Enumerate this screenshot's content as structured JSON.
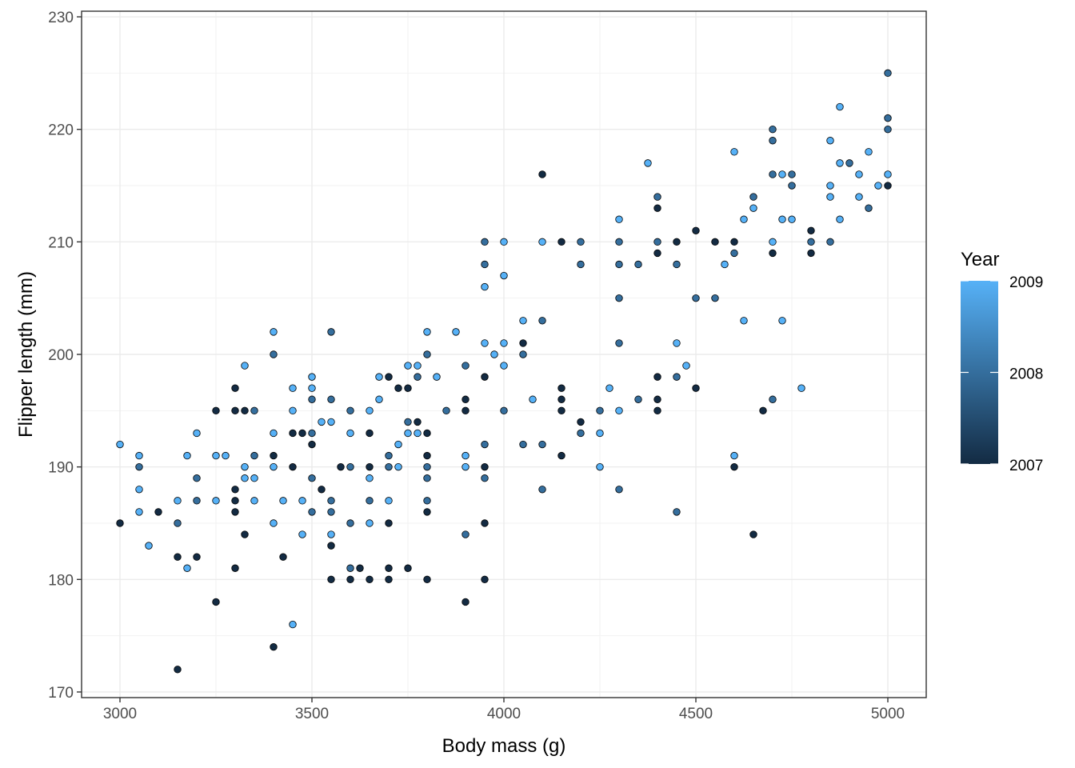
{
  "chart_data": {
    "type": "scatter",
    "title": "",
    "xlabel": "Body mass (g)",
    "ylabel": "Flipper length (mm)",
    "xlim": [
      2900,
      5100
    ],
    "ylim": [
      169.5,
      230.5
    ],
    "x_ticks": [
      3000,
      3500,
      4000,
      4500,
      5000
    ],
    "y_ticks": [
      170,
      180,
      190,
      200,
      210,
      220,
      230
    ],
    "x_tick_labels": [
      "3000",
      "3500",
      "4000",
      "4500",
      "5000"
    ],
    "y_tick_labels": [
      "170",
      "180",
      "190",
      "200",
      "210",
      "220",
      "230"
    ],
    "grid": true,
    "legend": {
      "title": "Year",
      "type": "colorbar",
      "placement": "right",
      "min": 2007,
      "max": 2009,
      "labels": [
        "2009",
        "2008",
        "2007"
      ],
      "low_color": "#132B43",
      "high_color": "#56B1F7"
    },
    "point_outline_color": "#000000",
    "points": [
      {
        "x": 3000,
        "y": 192,
        "year": 2009
      },
      {
        "x": 3000,
        "y": 185,
        "year": 2007
      },
      {
        "x": 3050,
        "y": 191,
        "year": 2009
      },
      {
        "x": 3050,
        "y": 190,
        "year": 2008
      },
      {
        "x": 3050,
        "y": 188,
        "year": 2009
      },
      {
        "x": 3050,
        "y": 186,
        "year": 2009
      },
      {
        "x": 3075,
        "y": 183,
        "year": 2009
      },
      {
        "x": 3100,
        "y": 186,
        "year": 2007
      },
      {
        "x": 3150,
        "y": 187,
        "year": 2009
      },
      {
        "x": 3150,
        "y": 185,
        "year": 2008
      },
      {
        "x": 3150,
        "y": 182,
        "year": 2007
      },
      {
        "x": 3150,
        "y": 172,
        "year": 2007
      },
      {
        "x": 3175,
        "y": 191,
        "year": 2009
      },
      {
        "x": 3175,
        "y": 181,
        "year": 2009
      },
      {
        "x": 3200,
        "y": 193,
        "year": 2009
      },
      {
        "x": 3200,
        "y": 189,
        "year": 2008
      },
      {
        "x": 3200,
        "y": 187,
        "year": 2008
      },
      {
        "x": 3200,
        "y": 182,
        "year": 2007
      },
      {
        "x": 3250,
        "y": 195,
        "year": 2007
      },
      {
        "x": 3250,
        "y": 191,
        "year": 2009
      },
      {
        "x": 3250,
        "y": 187,
        "year": 2009
      },
      {
        "x": 3250,
        "y": 178,
        "year": 2007
      },
      {
        "x": 3275,
        "y": 191,
        "year": 2009
      },
      {
        "x": 3300,
        "y": 197,
        "year": 2007
      },
      {
        "x": 3300,
        "y": 195,
        "year": 2007
      },
      {
        "x": 3300,
        "y": 188,
        "year": 2007
      },
      {
        "x": 3300,
        "y": 187,
        "year": 2007
      },
      {
        "x": 3300,
        "y": 186,
        "year": 2007
      },
      {
        "x": 3300,
        "y": 181,
        "year": 2007
      },
      {
        "x": 3325,
        "y": 199,
        "year": 2009
      },
      {
        "x": 3325,
        "y": 195,
        "year": 2007
      },
      {
        "x": 3325,
        "y": 190,
        "year": 2009
      },
      {
        "x": 3325,
        "y": 189,
        "year": 2009
      },
      {
        "x": 3325,
        "y": 184,
        "year": 2007
      },
      {
        "x": 3350,
        "y": 195,
        "year": 2008
      },
      {
        "x": 3350,
        "y": 191,
        "year": 2008
      },
      {
        "x": 3350,
        "y": 189,
        "year": 2009
      },
      {
        "x": 3350,
        "y": 187,
        "year": 2009
      },
      {
        "x": 3400,
        "y": 202,
        "year": 2009
      },
      {
        "x": 3400,
        "y": 200,
        "year": 2008
      },
      {
        "x": 3400,
        "y": 193,
        "year": 2009
      },
      {
        "x": 3400,
        "y": 191,
        "year": 2007
      },
      {
        "x": 3400,
        "y": 190,
        "year": 2009
      },
      {
        "x": 3400,
        "y": 185,
        "year": 2009
      },
      {
        "x": 3400,
        "y": 174,
        "year": 2007
      },
      {
        "x": 3425,
        "y": 187,
        "year": 2009
      },
      {
        "x": 3425,
        "y": 182,
        "year": 2007
      },
      {
        "x": 3450,
        "y": 197,
        "year": 2009
      },
      {
        "x": 3450,
        "y": 195,
        "year": 2009
      },
      {
        "x": 3450,
        "y": 193,
        "year": 2007
      },
      {
        "x": 3450,
        "y": 190,
        "year": 2007
      },
      {
        "x": 3450,
        "y": 176,
        "year": 2009
      },
      {
        "x": 3475,
        "y": 193,
        "year": 2007
      },
      {
        "x": 3475,
        "y": 187,
        "year": 2009
      },
      {
        "x": 3475,
        "y": 184,
        "year": 2009
      },
      {
        "x": 3500,
        "y": 198,
        "year": 2009
      },
      {
        "x": 3500,
        "y": 197,
        "year": 2009
      },
      {
        "x": 3500,
        "y": 196,
        "year": 2008
      },
      {
        "x": 3500,
        "y": 193,
        "year": 2008
      },
      {
        "x": 3500,
        "y": 192,
        "year": 2007
      },
      {
        "x": 3500,
        "y": 189,
        "year": 2008
      },
      {
        "x": 3500,
        "y": 186,
        "year": 2008
      },
      {
        "x": 3525,
        "y": 194,
        "year": 2009
      },
      {
        "x": 3525,
        "y": 188,
        "year": 2007
      },
      {
        "x": 3550,
        "y": 202,
        "year": 2008
      },
      {
        "x": 3550,
        "y": 196,
        "year": 2008
      },
      {
        "x": 3550,
        "y": 194,
        "year": 2009
      },
      {
        "x": 3550,
        "y": 187,
        "year": 2008
      },
      {
        "x": 3550,
        "y": 186,
        "year": 2008
      },
      {
        "x": 3550,
        "y": 184,
        "year": 2009
      },
      {
        "x": 3550,
        "y": 183,
        "year": 2007
      },
      {
        "x": 3550,
        "y": 180,
        "year": 2007
      },
      {
        "x": 3575,
        "y": 190,
        "year": 2007
      },
      {
        "x": 3600,
        "y": 195,
        "year": 2008
      },
      {
        "x": 3600,
        "y": 193,
        "year": 2009
      },
      {
        "x": 3600,
        "y": 190,
        "year": 2008
      },
      {
        "x": 3600,
        "y": 185,
        "year": 2008
      },
      {
        "x": 3600,
        "y": 181,
        "year": 2008
      },
      {
        "x": 3600,
        "y": 180,
        "year": 2007
      },
      {
        "x": 3625,
        "y": 181,
        "year": 2007
      },
      {
        "x": 3650,
        "y": 195,
        "year": 2009
      },
      {
        "x": 3650,
        "y": 193,
        "year": 2007
      },
      {
        "x": 3650,
        "y": 190,
        "year": 2007
      },
      {
        "x": 3650,
        "y": 189,
        "year": 2009
      },
      {
        "x": 3650,
        "y": 187,
        "year": 2008
      },
      {
        "x": 3650,
        "y": 185,
        "year": 2009
      },
      {
        "x": 3650,
        "y": 180,
        "year": 2007
      },
      {
        "x": 3675,
        "y": 198,
        "year": 2009
      },
      {
        "x": 3675,
        "y": 196,
        "year": 2009
      },
      {
        "x": 3700,
        "y": 198,
        "year": 2007
      },
      {
        "x": 3700,
        "y": 191,
        "year": 2008
      },
      {
        "x": 3700,
        "y": 190,
        "year": 2008
      },
      {
        "x": 3700,
        "y": 187,
        "year": 2009
      },
      {
        "x": 3700,
        "y": 185,
        "year": 2007
      },
      {
        "x": 3700,
        "y": 181,
        "year": 2007
      },
      {
        "x": 3700,
        "y": 180,
        "year": 2007
      },
      {
        "x": 3725,
        "y": 197,
        "year": 2007
      },
      {
        "x": 3725,
        "y": 192,
        "year": 2009
      },
      {
        "x": 3725,
        "y": 190,
        "year": 2009
      },
      {
        "x": 3750,
        "y": 199,
        "year": 2009
      },
      {
        "x": 3750,
        "y": 197,
        "year": 2007
      },
      {
        "x": 3750,
        "y": 194,
        "year": 2008
      },
      {
        "x": 3750,
        "y": 193,
        "year": 2009
      },
      {
        "x": 3750,
        "y": 181,
        "year": 2007
      },
      {
        "x": 3775,
        "y": 199,
        "year": 2009
      },
      {
        "x": 3775,
        "y": 198,
        "year": 2008
      },
      {
        "x": 3775,
        "y": 194,
        "year": 2007
      },
      {
        "x": 3775,
        "y": 193,
        "year": 2009
      },
      {
        "x": 3800,
        "y": 202,
        "year": 2009
      },
      {
        "x": 3800,
        "y": 200,
        "year": 2008
      },
      {
        "x": 3800,
        "y": 193,
        "year": 2007
      },
      {
        "x": 3800,
        "y": 191,
        "year": 2007
      },
      {
        "x": 3800,
        "y": 190,
        "year": 2008
      },
      {
        "x": 3800,
        "y": 189,
        "year": 2008
      },
      {
        "x": 3800,
        "y": 187,
        "year": 2008
      },
      {
        "x": 3800,
        "y": 186,
        "year": 2007
      },
      {
        "x": 3800,
        "y": 180,
        "year": 2007
      },
      {
        "x": 3825,
        "y": 198,
        "year": 2009
      },
      {
        "x": 3850,
        "y": 195,
        "year": 2008
      },
      {
        "x": 3875,
        "y": 202,
        "year": 2009
      },
      {
        "x": 3900,
        "y": 199,
        "year": 2008
      },
      {
        "x": 3900,
        "y": 196,
        "year": 2007
      },
      {
        "x": 3900,
        "y": 195,
        "year": 2007
      },
      {
        "x": 3900,
        "y": 191,
        "year": 2009
      },
      {
        "x": 3900,
        "y": 190,
        "year": 2009
      },
      {
        "x": 3900,
        "y": 184,
        "year": 2008
      },
      {
        "x": 3900,
        "y": 178,
        "year": 2007
      },
      {
        "x": 3950,
        "y": 210,
        "year": 2008
      },
      {
        "x": 3950,
        "y": 208,
        "year": 2008
      },
      {
        "x": 3950,
        "y": 206,
        "year": 2009
      },
      {
        "x": 3950,
        "y": 201,
        "year": 2009
      },
      {
        "x": 3950,
        "y": 198,
        "year": 2007
      },
      {
        "x": 3950,
        "y": 192,
        "year": 2008
      },
      {
        "x": 3950,
        "y": 190,
        "year": 2007
      },
      {
        "x": 3950,
        "y": 189,
        "year": 2008
      },
      {
        "x": 3950,
        "y": 185,
        "year": 2007
      },
      {
        "x": 3950,
        "y": 180,
        "year": 2007
      },
      {
        "x": 3975,
        "y": 200,
        "year": 2009
      },
      {
        "x": 4000,
        "y": 210,
        "year": 2009
      },
      {
        "x": 4000,
        "y": 207,
        "year": 2009
      },
      {
        "x": 4000,
        "y": 201,
        "year": 2009
      },
      {
        "x": 4000,
        "y": 199,
        "year": 2009
      },
      {
        "x": 4000,
        "y": 195,
        "year": 2008
      },
      {
        "x": 4050,
        "y": 203,
        "year": 2009
      },
      {
        "x": 4050,
        "y": 201,
        "year": 2007
      },
      {
        "x": 4050,
        "y": 200,
        "year": 2008
      },
      {
        "x": 4050,
        "y": 192,
        "year": 2008
      },
      {
        "x": 4075,
        "y": 196,
        "year": 2009
      },
      {
        "x": 4100,
        "y": 216,
        "year": 2007
      },
      {
        "x": 4100,
        "y": 210,
        "year": 2009
      },
      {
        "x": 4100,
        "y": 203,
        "year": 2008
      },
      {
        "x": 4100,
        "y": 192,
        "year": 2008
      },
      {
        "x": 4100,
        "y": 188,
        "year": 2008
      },
      {
        "x": 4150,
        "y": 210,
        "year": 2007
      },
      {
        "x": 4150,
        "y": 197,
        "year": 2007
      },
      {
        "x": 4150,
        "y": 196,
        "year": 2007
      },
      {
        "x": 4150,
        "y": 195,
        "year": 2007
      },
      {
        "x": 4150,
        "y": 191,
        "year": 2007
      },
      {
        "x": 4200,
        "y": 210,
        "year": 2008
      },
      {
        "x": 4200,
        "y": 208,
        "year": 2008
      },
      {
        "x": 4200,
        "y": 194,
        "year": 2007
      },
      {
        "x": 4200,
        "y": 193,
        "year": 2008
      },
      {
        "x": 4250,
        "y": 195,
        "year": 2008
      },
      {
        "x": 4250,
        "y": 193,
        "year": 2009
      },
      {
        "x": 4250,
        "y": 190,
        "year": 2009
      },
      {
        "x": 4275,
        "y": 197,
        "year": 2009
      },
      {
        "x": 4300,
        "y": 212,
        "year": 2009
      },
      {
        "x": 4300,
        "y": 210,
        "year": 2008
      },
      {
        "x": 4300,
        "y": 208,
        "year": 2008
      },
      {
        "x": 4300,
        "y": 205,
        "year": 2008
      },
      {
        "x": 4300,
        "y": 201,
        "year": 2008
      },
      {
        "x": 4300,
        "y": 195,
        "year": 2009
      },
      {
        "x": 4300,
        "y": 188,
        "year": 2008
      },
      {
        "x": 4350,
        "y": 208,
        "year": 2008
      },
      {
        "x": 4350,
        "y": 196,
        "year": 2008
      },
      {
        "x": 4375,
        "y": 217,
        "year": 2009
      },
      {
        "x": 4400,
        "y": 214,
        "year": 2008
      },
      {
        "x": 4400,
        "y": 213,
        "year": 2007
      },
      {
        "x": 4400,
        "y": 210,
        "year": 2008
      },
      {
        "x": 4400,
        "y": 209,
        "year": 2007
      },
      {
        "x": 4400,
        "y": 198,
        "year": 2007
      },
      {
        "x": 4400,
        "y": 196,
        "year": 2007
      },
      {
        "x": 4400,
        "y": 195,
        "year": 2007
      },
      {
        "x": 4450,
        "y": 210,
        "year": 2007
      },
      {
        "x": 4450,
        "y": 208,
        "year": 2008
      },
      {
        "x": 4450,
        "y": 201,
        "year": 2009
      },
      {
        "x": 4450,
        "y": 198,
        "year": 2008
      },
      {
        "x": 4450,
        "y": 186,
        "year": 2008
      },
      {
        "x": 4475,
        "y": 199,
        "year": 2009
      },
      {
        "x": 4500,
        "y": 211,
        "year": 2007
      },
      {
        "x": 4500,
        "y": 205,
        "year": 2008
      },
      {
        "x": 4500,
        "y": 197,
        "year": 2007
      },
      {
        "x": 4550,
        "y": 210,
        "year": 2007
      },
      {
        "x": 4550,
        "y": 205,
        "year": 2008
      },
      {
        "x": 4575,
        "y": 208,
        "year": 2009
      },
      {
        "x": 4600,
        "y": 218,
        "year": 2009
      },
      {
        "x": 4600,
        "y": 210,
        "year": 2007
      },
      {
        "x": 4600,
        "y": 209,
        "year": 2008
      },
      {
        "x": 4600,
        "y": 191,
        "year": 2009
      },
      {
        "x": 4600,
        "y": 190,
        "year": 2007
      },
      {
        "x": 4625,
        "y": 212,
        "year": 2009
      },
      {
        "x": 4625,
        "y": 203,
        "year": 2009
      },
      {
        "x": 4650,
        "y": 214,
        "year": 2008
      },
      {
        "x": 4650,
        "y": 213,
        "year": 2009
      },
      {
        "x": 4650,
        "y": 184,
        "year": 2007
      },
      {
        "x": 4675,
        "y": 195,
        "year": 2007
      },
      {
        "x": 4700,
        "y": 220,
        "year": 2008
      },
      {
        "x": 4700,
        "y": 219,
        "year": 2008
      },
      {
        "x": 4700,
        "y": 216,
        "year": 2008
      },
      {
        "x": 4700,
        "y": 210,
        "year": 2009
      },
      {
        "x": 4700,
        "y": 209,
        "year": 2007
      },
      {
        "x": 4700,
        "y": 196,
        "year": 2008
      },
      {
        "x": 4725,
        "y": 216,
        "year": 2009
      },
      {
        "x": 4725,
        "y": 212,
        "year": 2009
      },
      {
        "x": 4725,
        "y": 203,
        "year": 2009
      },
      {
        "x": 4750,
        "y": 216,
        "year": 2008
      },
      {
        "x": 4750,
        "y": 215,
        "year": 2008
      },
      {
        "x": 4750,
        "y": 212,
        "year": 2009
      },
      {
        "x": 4775,
        "y": 197,
        "year": 2009
      },
      {
        "x": 4800,
        "y": 211,
        "year": 2007
      },
      {
        "x": 4800,
        "y": 210,
        "year": 2008
      },
      {
        "x": 4800,
        "y": 209,
        "year": 2007
      },
      {
        "x": 4850,
        "y": 219,
        "year": 2009
      },
      {
        "x": 4850,
        "y": 215,
        "year": 2009
      },
      {
        "x": 4850,
        "y": 214,
        "year": 2009
      },
      {
        "x": 4850,
        "y": 210,
        "year": 2008
      },
      {
        "x": 4875,
        "y": 222,
        "year": 2009
      },
      {
        "x": 4875,
        "y": 217,
        "year": 2009
      },
      {
        "x": 4875,
        "y": 212,
        "year": 2009
      },
      {
        "x": 4900,
        "y": 217,
        "year": 2008
      },
      {
        "x": 4925,
        "y": 216,
        "year": 2009
      },
      {
        "x": 4925,
        "y": 214,
        "year": 2009
      },
      {
        "x": 4950,
        "y": 218,
        "year": 2009
      },
      {
        "x": 4950,
        "y": 213,
        "year": 2008
      },
      {
        "x": 4975,
        "y": 215,
        "year": 2009
      },
      {
        "x": 5000,
        "y": 225,
        "year": 2008
      },
      {
        "x": 5000,
        "y": 221,
        "year": 2008
      },
      {
        "x": 5000,
        "y": 220,
        "year": 2008
      },
      {
        "x": 5000,
        "y": 216,
        "year": 2009
      },
      {
        "x": 5000,
        "y": 215,
        "year": 2007
      }
    ]
  }
}
